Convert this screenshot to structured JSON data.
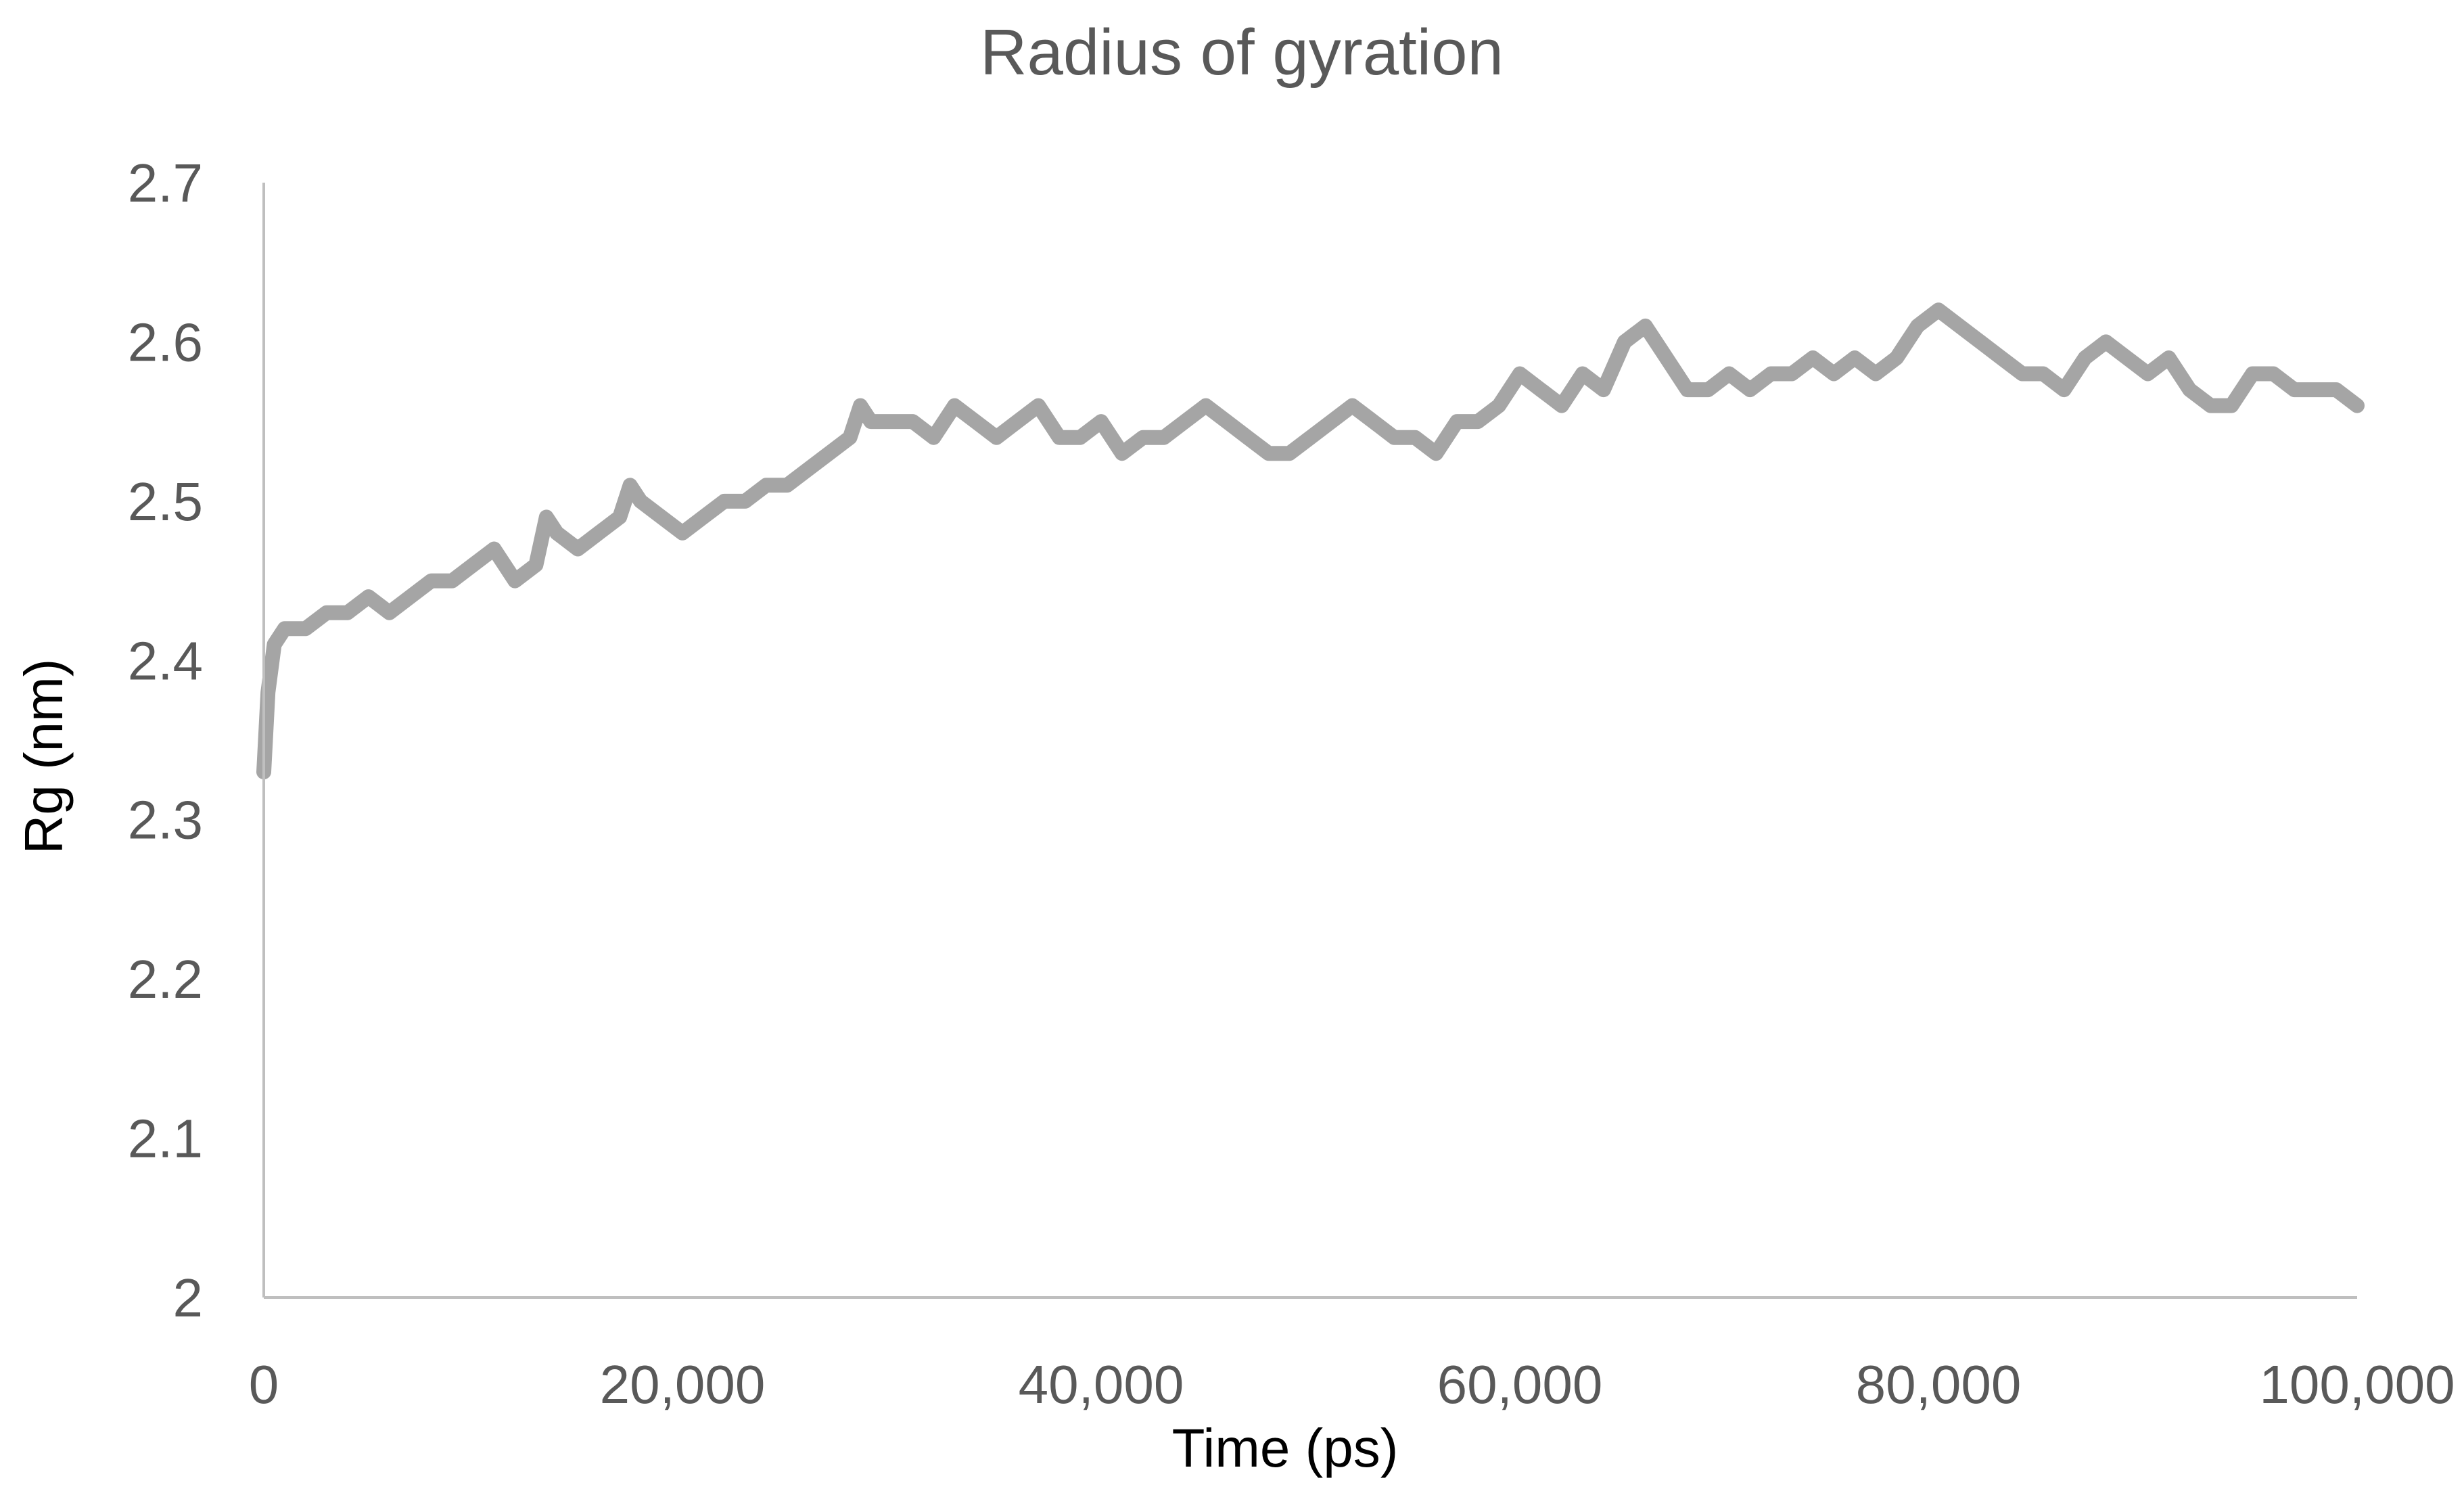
{
  "colors": {
    "series": "#A5A5A5",
    "axis": "#BFBFBF",
    "text": "#595959",
    "axis_label": "#000000"
  },
  "chart_data": {
    "type": "line",
    "title": "Radius of gyration",
    "xlabel": "Time (ps)",
    "ylabel": "Rg (nm)",
    "xlim": [
      0,
      100000
    ],
    "ylim": [
      2,
      2.7
    ],
    "x_ticks": [
      0,
      20000,
      40000,
      60000,
      80000,
      100000
    ],
    "x_tick_labels": [
      "0",
      "20,000",
      "40,000",
      "60,000",
      "80,000",
      "100,000"
    ],
    "y_ticks": [
      2,
      2.1,
      2.2,
      2.3,
      2.4,
      2.5,
      2.6,
      2.7
    ],
    "y_tick_labels": [
      "2",
      "2.1",
      "2.2",
      "2.3",
      "2.4",
      "2.5",
      "2.6",
      "2.7"
    ],
    "grid": false,
    "legend": "none",
    "series": [
      {
        "x": [
          0,
          200,
          500,
          1000,
          2000,
          3000,
          4000,
          5000,
          6000,
          7000,
          8000,
          9000,
          10000,
          11000,
          12000,
          13000,
          13500,
          14000,
          15000,
          16000,
          17000,
          17500,
          18000,
          19000,
          20000,
          21000,
          22000,
          23000,
          24000,
          25000,
          26000,
          27000,
          28000,
          28500,
          29000,
          30000,
          31000,
          32000,
          33000,
          34000,
          35000,
          36000,
          37000,
          38000,
          39000,
          40000,
          41000,
          42000,
          43000,
          44000,
          45000,
          46000,
          47000,
          48000,
          49000,
          50000,
          51000,
          52000,
          53000,
          54000,
          55000,
          56000,
          57000,
          58000,
          59000,
          60000,
          61000,
          62000,
          62500,
          63000,
          64000,
          65000,
          66000,
          67000,
          68000,
          69000,
          70000,
          71000,
          72000,
          73000,
          74000,
          75000,
          76000,
          77000,
          78000,
          78500,
          79000,
          80000,
          81000,
          82000,
          83000,
          84000,
          85000,
          86000,
          87000,
          88000,
          89000,
          90000,
          91000,
          92000,
          93000,
          94000,
          95000,
          96000,
          97000,
          98000,
          99000,
          100000
        ],
        "values": [
          2.33,
          2.38,
          2.41,
          2.42,
          2.42,
          2.43,
          2.43,
          2.44,
          2.43,
          2.44,
          2.45,
          2.45,
          2.46,
          2.47,
          2.45,
          2.46,
          2.49,
          2.48,
          2.47,
          2.48,
          2.49,
          2.51,
          2.5,
          2.49,
          2.48,
          2.49,
          2.5,
          2.5,
          2.51,
          2.51,
          2.52,
          2.53,
          2.54,
          2.56,
          2.55,
          2.55,
          2.55,
          2.54,
          2.56,
          2.55,
          2.54,
          2.55,
          2.56,
          2.54,
          2.54,
          2.55,
          2.53,
          2.54,
          2.54,
          2.55,
          2.56,
          2.55,
          2.54,
          2.53,
          2.53,
          2.54,
          2.55,
          2.56,
          2.55,
          2.54,
          2.54,
          2.53,
          2.55,
          2.55,
          2.56,
          2.58,
          2.57,
          2.56,
          2.57,
          2.58,
          2.57,
          2.6,
          2.61,
          2.59,
          2.57,
          2.57,
          2.58,
          2.57,
          2.58,
          2.58,
          2.59,
          2.58,
          2.59,
          2.58,
          2.59,
          2.6,
          2.61,
          2.62,
          2.61,
          2.6,
          2.59,
          2.58,
          2.58,
          2.57,
          2.59,
          2.6,
          2.59,
          2.58,
          2.59,
          2.57,
          2.56,
          2.56,
          2.58,
          2.58,
          2.57,
          2.57,
          2.57,
          2.56
        ]
      }
    ]
  }
}
